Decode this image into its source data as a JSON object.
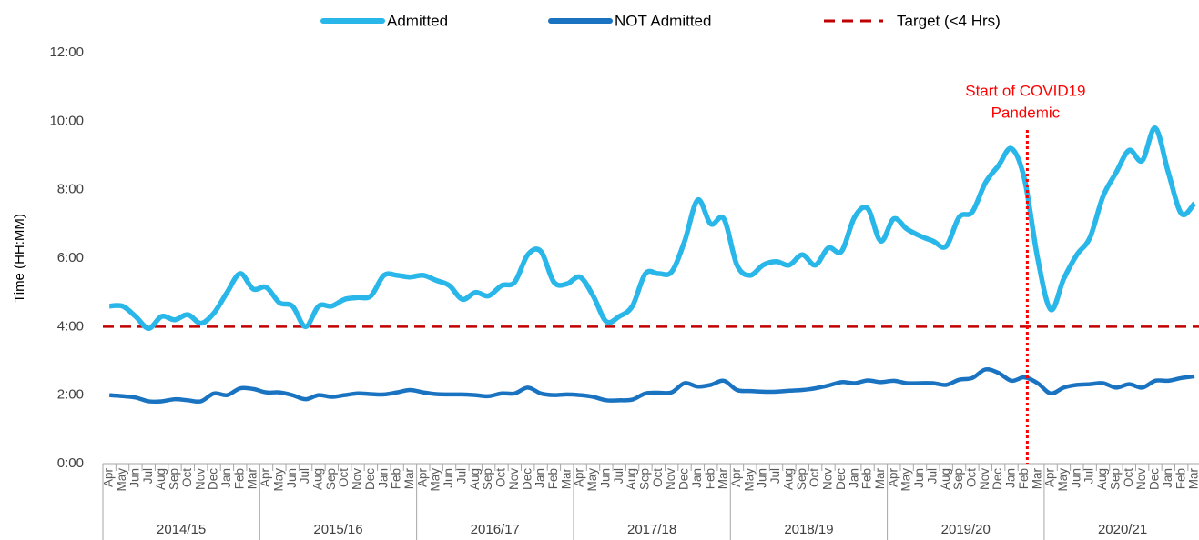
{
  "chart_data": {
    "type": "line",
    "y_label": "Time (HH:MM)",
    "categories": [
      "Apr",
      "May",
      "Jun",
      "Jul",
      "Aug",
      "Sep",
      "Oct",
      "Nov",
      "Dec",
      "Jan",
      "Feb",
      "Mar",
      "Apr",
      "May",
      "Jun",
      "Jul",
      "Aug",
      "Sep",
      "Oct",
      "Nov",
      "Dec",
      "Jan",
      "Feb",
      "Mar",
      "Apr",
      "May",
      "Jun",
      "Jul",
      "Aug",
      "Sep",
      "Oct",
      "Nov",
      "Dec",
      "Jan",
      "Feb",
      "Mar",
      "Apr",
      "May",
      "Jun",
      "Jul",
      "Aug",
      "Sep",
      "Oct",
      "Nov",
      "Dec",
      "Jan",
      "Feb",
      "Mar",
      "Apr",
      "May",
      "Jun",
      "Jul",
      "Aug",
      "Sep",
      "Oct",
      "Nov",
      "Dec",
      "Jan",
      "Feb",
      "Mar",
      "Apr",
      "May",
      "Jun",
      "Jul",
      "Aug",
      "Sep",
      "Oct",
      "Nov",
      "Dec",
      "Jan",
      "Feb",
      "Mar",
      "Apr",
      "May",
      "Jun",
      "Jul",
      "Aug",
      "Sep",
      "Oct",
      "Nov",
      "Dec",
      "Jan",
      "Feb",
      "Mar"
    ],
    "groups": [
      "2014/15",
      "2015/16",
      "2016/17",
      "2017/18",
      "2018/19",
      "2019/20",
      "2020/21"
    ],
    "series": [
      {
        "name": "Admitted",
        "color": "#29b6e8",
        "values": [
          4.6,
          4.6,
          4.3,
          3.95,
          4.3,
          4.2,
          4.35,
          4.1,
          4.4,
          5.0,
          5.55,
          5.1,
          5.15,
          4.7,
          4.6,
          4.0,
          4.6,
          4.6,
          4.8,
          4.85,
          4.9,
          5.5,
          5.5,
          5.45,
          5.5,
          5.35,
          5.2,
          4.8,
          5.0,
          4.9,
          5.2,
          5.3,
          6.1,
          6.2,
          5.3,
          5.25,
          5.45,
          4.9,
          4.15,
          4.3,
          4.6,
          5.55,
          5.55,
          5.6,
          6.5,
          7.7,
          7.0,
          7.15,
          5.8,
          5.5,
          5.8,
          5.9,
          5.8,
          6.1,
          5.8,
          6.3,
          6.2,
          7.2,
          7.45,
          6.5,
          7.15,
          6.85,
          6.65,
          6.5,
          6.35,
          7.2,
          7.35,
          8.2,
          8.7,
          9.2,
          8.3,
          6.0,
          4.5,
          5.4,
          6.1,
          6.6,
          7.8,
          8.5,
          9.15,
          8.85,
          9.8,
          8.5,
          7.3,
          7.6
        ]
      },
      {
        "name": "NOT Admitted",
        "color": "#1a73c1",
        "values": [
          2.0,
          1.97,
          1.93,
          1.82,
          1.82,
          1.88,
          1.85,
          1.82,
          2.05,
          2.0,
          2.2,
          2.18,
          2.08,
          2.08,
          2.0,
          1.88,
          2.0,
          1.95,
          2.0,
          2.05,
          2.03,
          2.02,
          2.08,
          2.15,
          2.08,
          2.03,
          2.02,
          2.02,
          2.0,
          1.97,
          2.05,
          2.05,
          2.22,
          2.05,
          2.0,
          2.02,
          2.0,
          1.95,
          1.85,
          1.85,
          1.87,
          2.05,
          2.07,
          2.08,
          2.35,
          2.25,
          2.3,
          2.42,
          2.15,
          2.12,
          2.1,
          2.1,
          2.13,
          2.15,
          2.2,
          2.28,
          2.38,
          2.35,
          2.43,
          2.38,
          2.42,
          2.35,
          2.35,
          2.35,
          2.3,
          2.45,
          2.5,
          2.75,
          2.65,
          2.42,
          2.52,
          2.35,
          2.05,
          2.22,
          2.3,
          2.32,
          2.35,
          2.22,
          2.32,
          2.22,
          2.42,
          2.42,
          2.5,
          2.55
        ]
      }
    ],
    "target": {
      "name": "Target (<4 Hrs)",
      "value": 4,
      "color": "#c00000"
    },
    "annotation": {
      "lines": [
        "Start of COVID19",
        "Pandemic"
      ],
      "color": "#ff0000"
    },
    "ylim": [
      0,
      12
    ],
    "yticks": [
      {
        "value": 0,
        "label": "0:00"
      },
      {
        "value": 2,
        "label": "2:00"
      },
      {
        "value": 4,
        "label": "4:00"
      },
      {
        "value": 6,
        "label": "6:00"
      },
      {
        "value": 8,
        "label": "8:00"
      },
      {
        "value": 10,
        "label": "10:00"
      },
      {
        "value": 12,
        "label": "12:00"
      }
    ],
    "legend": "top"
  }
}
